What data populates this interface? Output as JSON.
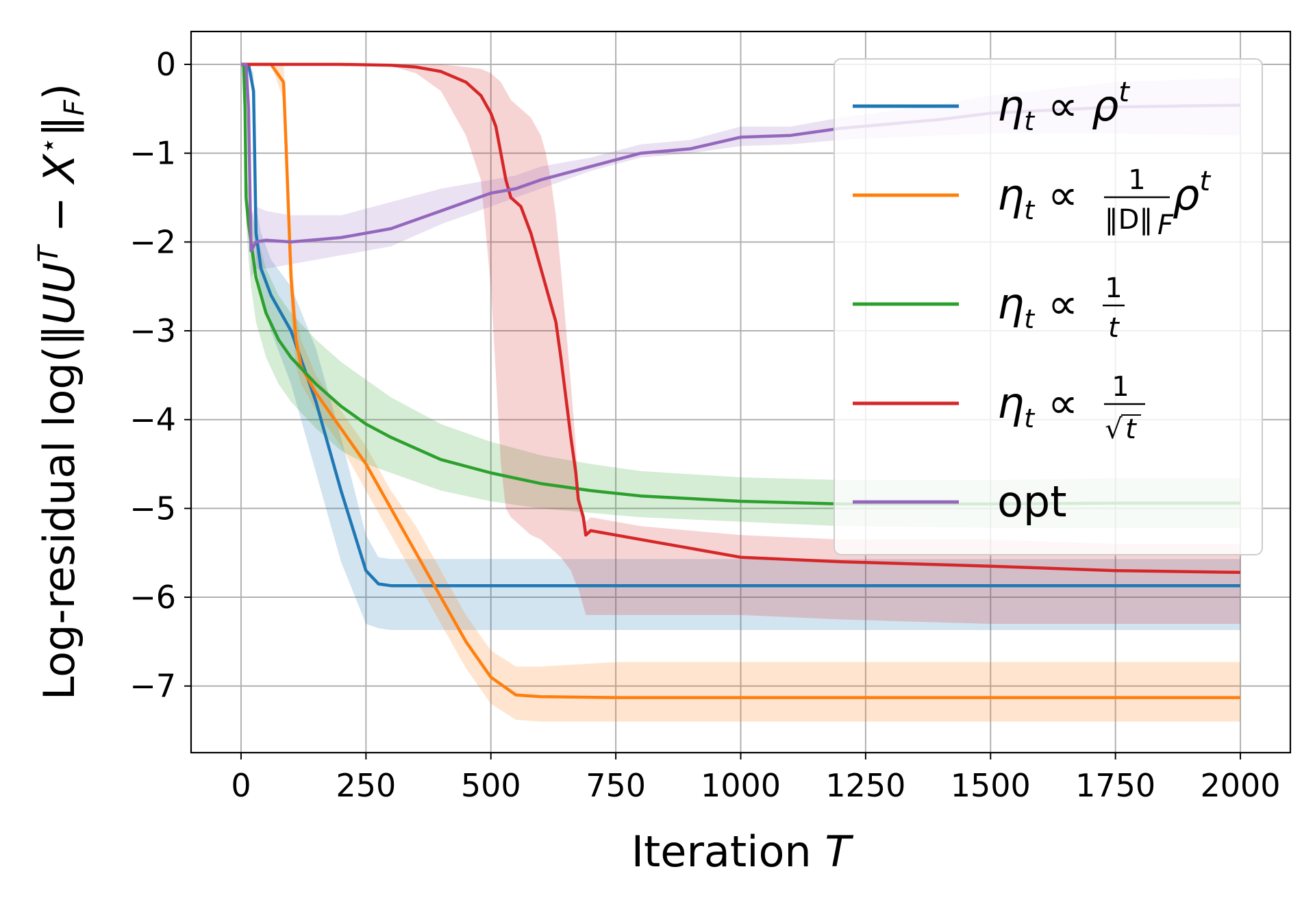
{
  "chart_data": {
    "type": "line",
    "xlabel": "Iteration T",
    "ylabel": "Log-residual log(‖UU^T − X*‖_F)",
    "xlim": [
      -100,
      2100
    ],
    "ylim": [
      -7.75,
      0.37
    ],
    "xticks": [
      0,
      250,
      500,
      750,
      1000,
      1250,
      1500,
      1750,
      2000
    ],
    "xtick_labels": [
      "0",
      "250",
      "500",
      "750",
      "1000",
      "1250",
      "1500",
      "1750",
      "2000"
    ],
    "yticks": [
      0,
      -1,
      -2,
      -3,
      -4,
      -5,
      -6,
      -7
    ],
    "ytick_labels": [
      "0",
      "−1",
      "−2",
      "−3",
      "−4",
      "−5",
      "−6",
      "−7"
    ],
    "grid": true,
    "legend_position": "top-right",
    "series": [
      {
        "name": "η_t ∝ ρ^t",
        "color": "#1f77b4",
        "x": [
          0,
          15,
          25,
          30,
          40,
          60,
          100,
          150,
          200,
          250,
          275,
          300,
          350,
          400,
          500,
          750,
          1000,
          1500,
          2000
        ],
        "values": [
          0,
          0,
          -0.3,
          -1.9,
          -2.3,
          -2.6,
          -3.0,
          -3.8,
          -4.8,
          -5.7,
          -5.85,
          -5.87,
          -5.87,
          -5.87,
          -5.87,
          -5.87,
          -5.87,
          -5.87,
          -5.87
        ],
        "band_low": [
          0,
          0,
          -0.5,
          -2.2,
          -2.6,
          -3.0,
          -3.6,
          -4.6,
          -5.6,
          -6.3,
          -6.35,
          -6.37,
          -6.37,
          -6.37,
          -6.37,
          -6.37,
          -6.37,
          -6.37,
          -6.37
        ],
        "band_high": [
          0,
          0,
          -0.1,
          -1.6,
          -1.9,
          -2.2,
          -2.5,
          -3.2,
          -4.2,
          -5.3,
          -5.55,
          -5.57,
          -5.57,
          -5.57,
          -5.57,
          -5.57,
          -5.57,
          -5.57,
          -5.57
        ]
      },
      {
        "name": "η_t ∝ (1/‖D‖_F) ρ^t",
        "color": "#ff7f0e",
        "x": [
          0,
          60,
          85,
          90,
          100,
          110,
          120,
          150,
          200,
          250,
          300,
          350,
          400,
          450,
          500,
          550,
          600,
          750,
          1000,
          1500,
          2000
        ],
        "values": [
          0,
          0,
          -0.2,
          -0.9,
          -2.4,
          -3.1,
          -3.4,
          -3.7,
          -4.1,
          -4.5,
          -5.0,
          -5.5,
          -6.0,
          -6.5,
          -6.9,
          -7.1,
          -7.12,
          -7.13,
          -7.13,
          -7.13,
          -7.13
        ],
        "band_low": [
          0,
          0,
          -0.4,
          -1.3,
          -2.8,
          -3.4,
          -3.6,
          -3.9,
          -4.3,
          -4.8,
          -5.3,
          -5.8,
          -6.3,
          -6.8,
          -7.2,
          -7.38,
          -7.4,
          -7.4,
          -7.4,
          -7.4,
          -7.4
        ],
        "band_high": [
          0,
          0,
          0,
          -0.5,
          -2.0,
          -2.8,
          -3.1,
          -3.5,
          -3.9,
          -4.3,
          -4.8,
          -5.2,
          -5.7,
          -6.2,
          -6.6,
          -6.78,
          -6.78,
          -6.73,
          -6.73,
          -6.73,
          -6.73
        ]
      },
      {
        "name": "η_t ∝ 1/t",
        "color": "#2ca02c",
        "x": [
          0,
          5,
          8,
          10,
          15,
          20,
          30,
          50,
          75,
          100,
          150,
          200,
          250,
          300,
          400,
          500,
          600,
          700,
          800,
          1000,
          1200,
          1500,
          1750,
          2000
        ],
        "values": [
          0,
          0,
          -0.5,
          -1.5,
          -1.8,
          -2.0,
          -2.4,
          -2.8,
          -3.1,
          -3.3,
          -3.6,
          -3.85,
          -4.05,
          -4.2,
          -4.45,
          -4.6,
          -4.72,
          -4.8,
          -4.86,
          -4.92,
          -4.95,
          -4.95,
          -4.94,
          -4.94
        ],
        "band_low": [
          0,
          0,
          -0.7,
          -1.8,
          -2.2,
          -2.5,
          -2.9,
          -3.3,
          -3.6,
          -3.8,
          -4.1,
          -4.35,
          -4.5,
          -4.6,
          -4.8,
          -4.92,
          -5.0,
          -5.05,
          -5.1,
          -5.15,
          -5.2,
          -5.22,
          -5.22,
          -5.22
        ],
        "band_high": [
          0,
          0,
          -0.3,
          -1.2,
          -1.4,
          -1.6,
          -1.9,
          -2.3,
          -2.6,
          -2.8,
          -3.1,
          -3.35,
          -3.55,
          -3.75,
          -4.05,
          -4.25,
          -4.4,
          -4.5,
          -4.58,
          -4.65,
          -4.68,
          -4.68,
          -4.66,
          -4.66
        ]
      },
      {
        "name": "η_t ∝ 1/√t",
        "color": "#d62728",
        "x": [
          0,
          200,
          300,
          350,
          400,
          450,
          480,
          500,
          510,
          520,
          530,
          540,
          560,
          580,
          600,
          610,
          620,
          630,
          640,
          660,
          670,
          675,
          680,
          685,
          690,
          700,
          750,
          800,
          900,
          1000,
          1200,
          1500,
          1750,
          2000
        ],
        "values": [
          0,
          0,
          -0.01,
          -0.03,
          -0.08,
          -0.2,
          -0.35,
          -0.55,
          -0.7,
          -1.0,
          -1.3,
          -1.5,
          -1.6,
          -1.9,
          -2.3,
          -2.5,
          -2.7,
          -2.9,
          -3.3,
          -4.2,
          -4.6,
          -4.9,
          -5.0,
          -5.1,
          -5.3,
          -5.25,
          -5.3,
          -5.35,
          -5.45,
          -5.55,
          -5.6,
          -5.65,
          -5.7,
          -5.72
        ],
        "band_low": [
          0,
          0,
          -0.02,
          -0.1,
          -0.3,
          -0.8,
          -1.3,
          -2.5,
          -3.5,
          -4.5,
          -5.0,
          -5.1,
          -5.2,
          -5.3,
          -5.35,
          -5.4,
          -5.45,
          -5.5,
          -5.55,
          -5.7,
          -5.85,
          -5.9,
          -6.0,
          -6.1,
          -6.2,
          -6.2,
          -6.2,
          -6.2,
          -6.2,
          -6.2,
          -6.25,
          -6.3,
          -6.3,
          -6.3
        ],
        "band_high": [
          0,
          0,
          0,
          0,
          0,
          -0.03,
          -0.05,
          -0.1,
          -0.15,
          -0.2,
          -0.3,
          -0.4,
          -0.5,
          -0.6,
          -0.8,
          -1.0,
          -1.3,
          -1.7,
          -2.3,
          -3.6,
          -4.3,
          -4.8,
          -5.0,
          -5.05,
          -5.15,
          -5.1,
          -5.15,
          -5.2,
          -5.25,
          -5.3,
          -5.35,
          -5.35,
          -5.4,
          -5.4
        ]
      },
      {
        "name": "opt",
        "color": "#9467bd",
        "x": [
          0,
          10,
          15,
          20,
          30,
          50,
          100,
          200,
          300,
          400,
          500,
          550,
          600,
          700,
          800,
          900,
          1000,
          1100,
          1200,
          1400,
          1500,
          1750,
          2000
        ],
        "values": [
          0,
          0,
          -0.5,
          -2.1,
          -2.0,
          -1.98,
          -2.0,
          -1.95,
          -1.85,
          -1.65,
          -1.45,
          -1.4,
          -1.3,
          -1.15,
          -1.0,
          -0.95,
          -0.82,
          -0.8,
          -0.72,
          -0.62,
          -0.55,
          -0.48,
          -0.46
        ],
        "band_low": [
          0,
          0,
          -0.7,
          -2.4,
          -2.3,
          -2.3,
          -2.25,
          -2.15,
          -2.05,
          -1.8,
          -1.6,
          -1.5,
          -1.4,
          -1.2,
          -1.05,
          -1.0,
          -0.92,
          -0.9,
          -0.85,
          -0.8,
          -0.78,
          -0.78,
          -0.8
        ],
        "band_high": [
          0,
          0,
          -0.3,
          -1.7,
          -1.6,
          -1.65,
          -1.7,
          -1.7,
          -1.55,
          -1.4,
          -1.3,
          -1.25,
          -1.15,
          -1.05,
          -0.9,
          -0.85,
          -0.7,
          -0.7,
          -0.6,
          -0.45,
          -0.35,
          -0.2,
          -0.15
        ]
      }
    ]
  },
  "legend": [
    {
      "key": "rho-t",
      "base": "η",
      "sub": "t",
      "rel": "∝",
      "text": "ρ",
      "sup": "t"
    },
    {
      "key": "norm-rho-t",
      "base": "η",
      "sub": "t",
      "rel": "∝",
      "num": "1",
      "den": "‖D‖",
      "den_sub": "F",
      "text": "ρ",
      "sup": "t"
    },
    {
      "key": "inv-t",
      "base": "η",
      "sub": "t",
      "rel": "∝",
      "num": "1",
      "den": "t"
    },
    {
      "key": "inv-sqrt-t",
      "base": "η",
      "sub": "t",
      "rel": "∝",
      "num": "1",
      "den": "t",
      "radical": "√"
    },
    {
      "key": "opt",
      "text": "opt"
    }
  ]
}
